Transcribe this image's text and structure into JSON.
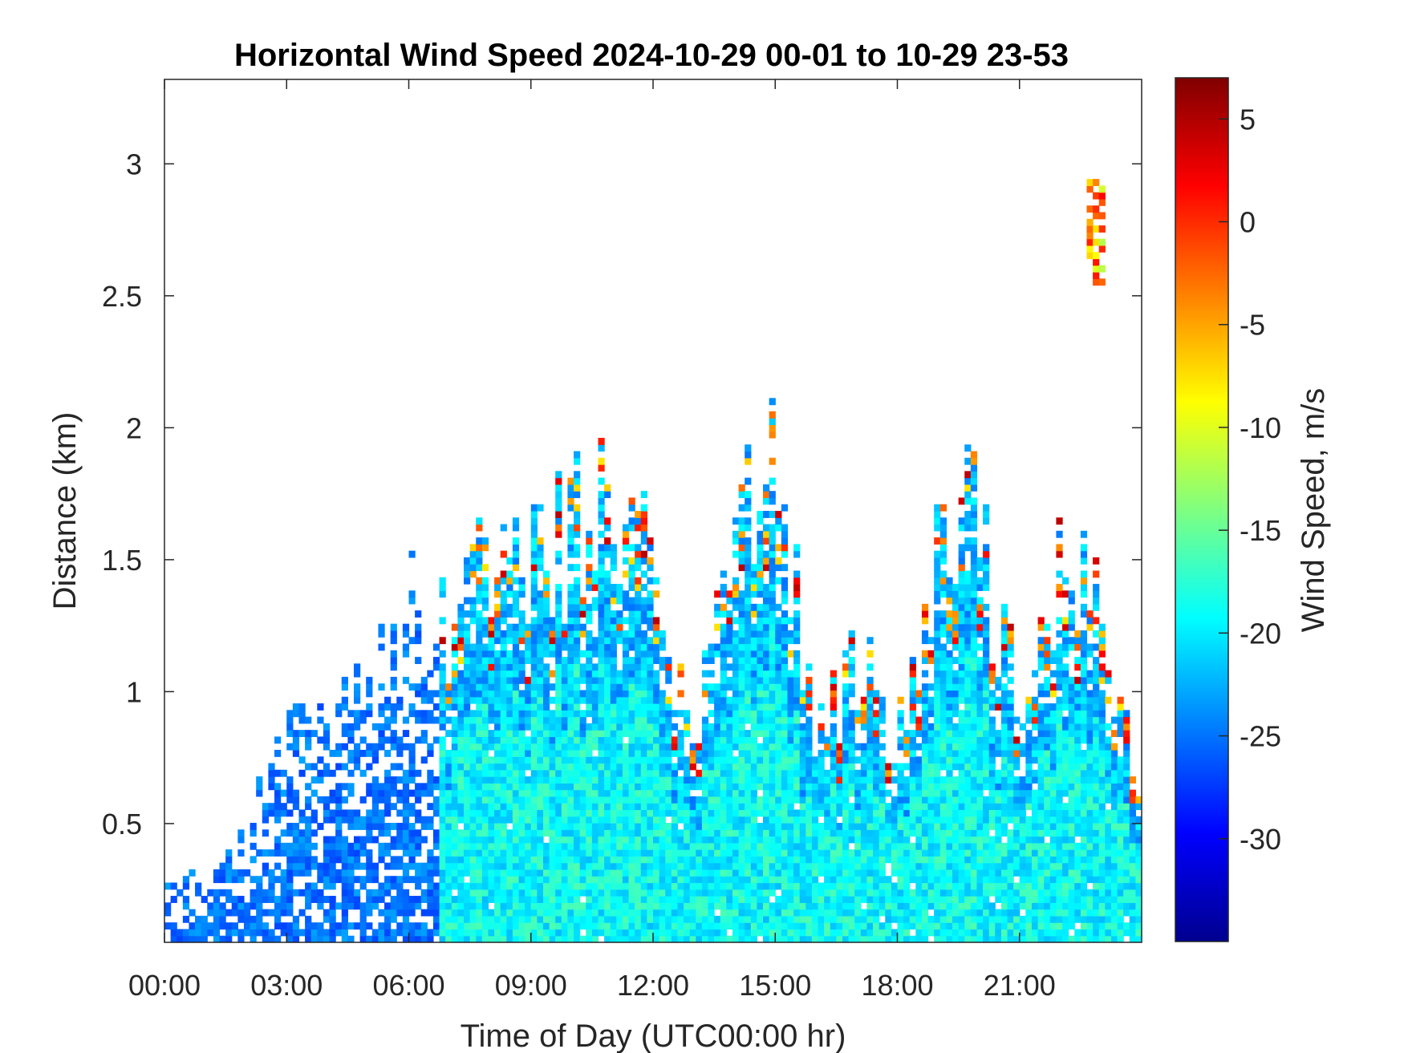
{
  "chart_data": {
    "type": "heatmap",
    "title": "Horizontal Wind Speed 2024-10-29 00-01 to 10-29 23-53",
    "xlabel": "Time of Day (UTC00:00 hr)",
    "ylabel": "Distance (km)",
    "colorbar_label": "Wind Speed, m/s",
    "colormap": "jet",
    "x_range_hours": [
      0,
      24
    ],
    "y_range_km": [
      0.05,
      3.32
    ],
    "color_range": [
      -35,
      7
    ],
    "x_ticks": [
      {
        "value": 0,
        "label": "00:00"
      },
      {
        "value": 3,
        "label": "03:00"
      },
      {
        "value": 6,
        "label": "06:00"
      },
      {
        "value": 9,
        "label": "09:00"
      },
      {
        "value": 12,
        "label": "12:00"
      },
      {
        "value": 15,
        "label": "15:00"
      },
      {
        "value": 18,
        "label": "18:00"
      },
      {
        "value": 21,
        "label": "21:00"
      }
    ],
    "y_ticks": [
      {
        "value": 0.5,
        "label": "0.5"
      },
      {
        "value": 1,
        "label": "1"
      },
      {
        "value": 1.5,
        "label": "1.5"
      },
      {
        "value": 2,
        "label": "2"
      },
      {
        "value": 2.5,
        "label": "2.5"
      },
      {
        "value": 3,
        "label": "3"
      }
    ],
    "colorbar_ticks": [
      {
        "value": 5,
        "label": "5"
      },
      {
        "value": 0,
        "label": "0"
      },
      {
        "value": -5,
        "label": "-5"
      },
      {
        "value": -10,
        "label": "-10"
      },
      {
        "value": -15,
        "label": "-15"
      },
      {
        "value": -20,
        "label": "-20"
      },
      {
        "value": -25,
        "label": "-25"
      },
      {
        "value": -30,
        "label": "-30"
      }
    ],
    "profile": {
      "description": "approximate echo-top height (km) at each hour, 00..24",
      "hours": [
        0,
        1,
        2,
        3,
        4,
        5,
        6,
        7,
        8,
        9,
        10,
        11,
        12,
        13,
        14,
        15,
        16,
        17,
        18,
        19,
        20,
        21,
        22,
        23,
        24
      ],
      "top_km": [
        0.28,
        0.3,
        0.45,
        0.85,
        0.95,
        1.05,
        1.3,
        1.2,
        1.55,
        1.5,
        1.7,
        1.65,
        1.45,
        0.75,
        1.6,
        1.95,
        0.8,
        1.15,
        0.75,
        1.65,
        1.6,
        0.95,
        1.45,
        1.45,
        0.6
      ]
    },
    "upper_echo": {
      "hours": [
        22.6,
        23.1
      ],
      "km": [
        2.55,
        2.95
      ]
    }
  }
}
